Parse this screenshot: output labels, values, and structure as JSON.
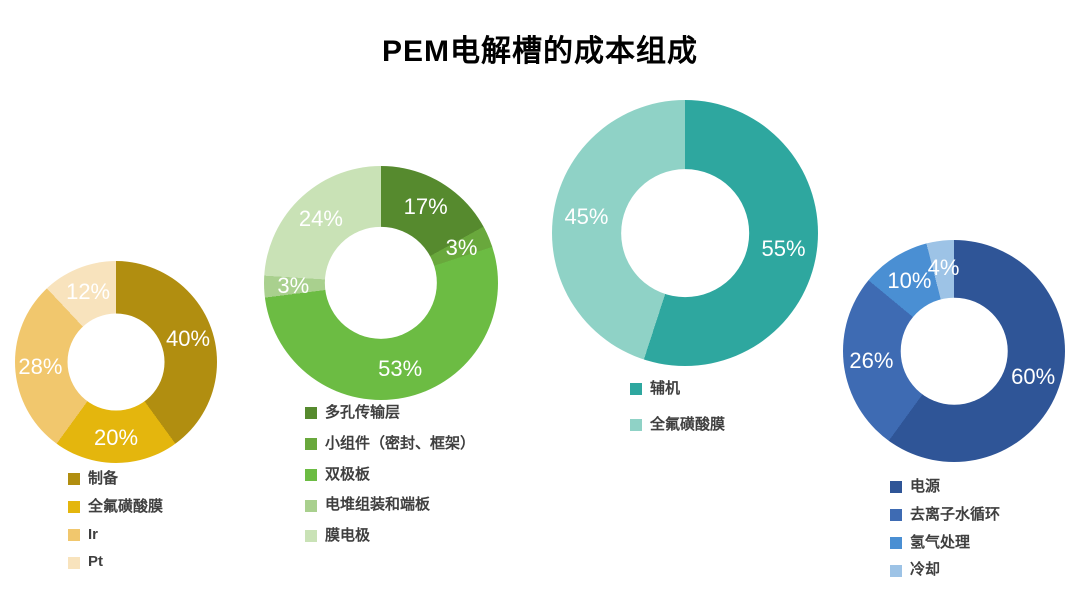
{
  "title": "PEM电解槽的成本组成",
  "colors": {
    "background": "#ffffff",
    "title_text": "#000000",
    "slice_label_text": "#ffffff",
    "legend_text": "#3f3f3f"
  },
  "chart_data": [
    {
      "type": "pie",
      "subtype": "donut",
      "start_angle_deg": 0,
      "direction": "clockwise",
      "legend_position": "bottom",
      "labels_format": "percent",
      "slices": [
        {
          "label": "制备",
          "value": 40,
          "color": "#B18E10"
        },
        {
          "label": "全氟磺酸膜",
          "value": 20,
          "color": "#E4B60D"
        },
        {
          "label": "Ir",
          "value": 28,
          "color": "#F1C76D"
        },
        {
          "label": "Pt",
          "value": 12,
          "color": "#F8E3BD"
        }
      ]
    },
    {
      "type": "pie",
      "subtype": "donut",
      "start_angle_deg": 0,
      "direction": "clockwise",
      "legend_position": "bottom",
      "labels_format": "percent",
      "slices": [
        {
          "label": "多孔传输层",
          "value": 17,
          "color": "#568A2E"
        },
        {
          "label": "小组件（密封、框架）",
          "value": 3,
          "color": "#69A83C"
        },
        {
          "label": "双极板",
          "value": 53,
          "color": "#6CBC43"
        },
        {
          "label": "电堆组装和端板",
          "value": 3,
          "color": "#A9D08E"
        },
        {
          "label": "膜电极",
          "value": 24,
          "color": "#C9E2B6"
        }
      ]
    },
    {
      "type": "pie",
      "subtype": "donut",
      "start_angle_deg": 0,
      "direction": "clockwise",
      "legend_position": "bottom",
      "labels_format": "percent",
      "slices": [
        {
          "label": "辅机",
          "value": 55,
          "color": "#2EA79F"
        },
        {
          "label": "全氟磺酸膜",
          "value": 45,
          "color": "#8FD2C6"
        }
      ]
    },
    {
      "type": "pie",
      "subtype": "donut",
      "start_angle_deg": 0,
      "direction": "clockwise",
      "legend_position": "bottom",
      "labels_format": "percent",
      "slices": [
        {
          "label": "电源",
          "value": 60,
          "color": "#2F5597"
        },
        {
          "label": "去离子水循环",
          "value": 26,
          "color": "#3E6BB3"
        },
        {
          "label": "氢气处理",
          "value": 10,
          "color": "#4A8FD3"
        },
        {
          "label": "冷却",
          "value": 4,
          "color": "#9DC3E6"
        }
      ]
    }
  ]
}
